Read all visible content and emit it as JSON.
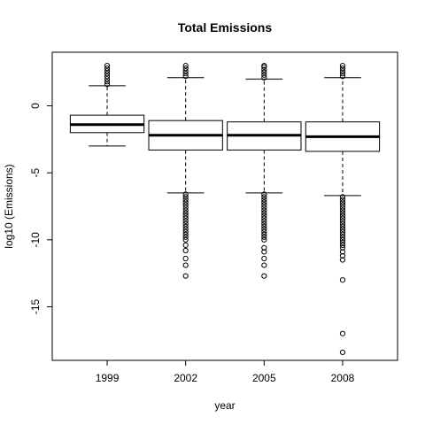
{
  "chart_data": {
    "type": "boxplot",
    "title": "Total Emissions",
    "xlabel": "year",
    "ylabel": "log10 (Emissions)",
    "ylim": [
      -19,
      4
    ],
    "yticks": [
      0,
      -5,
      -10,
      -15
    ],
    "categories": [
      "1999",
      "2002",
      "2005",
      "2008"
    ],
    "boxes": [
      {
        "category": "1999",
        "q1": -2.0,
        "median": -1.4,
        "q3": -0.7,
        "whisker_low": -3.0,
        "whisker_high": 1.5,
        "outliers_high": [
          1.6,
          1.8,
          2.0,
          2.2,
          2.4,
          2.6,
          2.8,
          3.0
        ],
        "outliers_low": []
      },
      {
        "category": "2002",
        "q1": -3.3,
        "median": -2.2,
        "q3": -1.1,
        "whisker_low": -6.5,
        "whisker_high": 2.1,
        "outliers_high": [
          2.2,
          2.4,
          2.6,
          2.8,
          3.0
        ],
        "outliers_low": [
          -6.6,
          -6.8,
          -7.0,
          -7.2,
          -7.4,
          -7.6,
          -7.8,
          -8.0,
          -8.2,
          -8.4,
          -8.6,
          -8.8,
          -9.0,
          -9.2,
          -9.4,
          -9.6,
          -9.8,
          -10.0,
          -10.4,
          -10.8,
          -11.4,
          -11.9,
          -12.7
        ]
      },
      {
        "category": "2005",
        "q1": -3.3,
        "median": -2.2,
        "q3": -1.2,
        "whisker_low": -6.5,
        "whisker_high": 2.0,
        "outliers_high": [
          2.1,
          2.3,
          2.5,
          2.7,
          2.9,
          3.0
        ],
        "outliers_low": [
          -6.6,
          -6.8,
          -7.0,
          -7.2,
          -7.4,
          -7.6,
          -7.8,
          -8.0,
          -8.2,
          -8.4,
          -8.6,
          -8.8,
          -9.0,
          -9.2,
          -9.4,
          -9.6,
          -9.8,
          -10.0,
          -10.6,
          -10.9,
          -11.4,
          -11.9,
          -12.7
        ]
      },
      {
        "category": "2008",
        "q1": -3.4,
        "median": -2.3,
        "q3": -1.2,
        "whisker_low": -6.7,
        "whisker_high": 2.1,
        "outliers_high": [
          2.2,
          2.4,
          2.6,
          2.8,
          3.0
        ],
        "outliers_low": [
          -6.8,
          -7.0,
          -7.2,
          -7.4,
          -7.6,
          -7.8,
          -8.0,
          -8.2,
          -8.4,
          -8.6,
          -8.8,
          -9.0,
          -9.2,
          -9.4,
          -9.6,
          -9.8,
          -10.0,
          -10.2,
          -10.4,
          -10.6,
          -10.9,
          -11.2,
          -11.5,
          -13.0,
          -17.0,
          -18.4
        ]
      }
    ],
    "grid": false,
    "legend": "none"
  }
}
